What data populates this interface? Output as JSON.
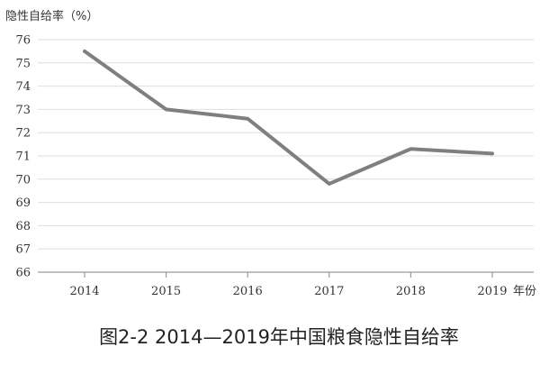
{
  "caption": "图2-2 2014—2019年中国粮食隐性自给率",
  "chart_data": {
    "type": "line",
    "title": "",
    "ylabel": "隐性自给率（%）",
    "xlabel": "年份",
    "x": [
      "2014",
      "2015",
      "2016",
      "2017",
      "2018",
      "2019"
    ],
    "series": [
      {
        "values": [
          75.5,
          73.0,
          72.6,
          69.8,
          71.3,
          71.1
        ]
      }
    ],
    "ylim": [
      66,
      76
    ],
    "yticks": [
      66,
      67,
      68,
      69,
      70,
      71,
      72,
      73,
      74,
      75,
      76
    ],
    "grid": true,
    "line_color": "#7f7f7f",
    "grid_color": "#dedede"
  }
}
